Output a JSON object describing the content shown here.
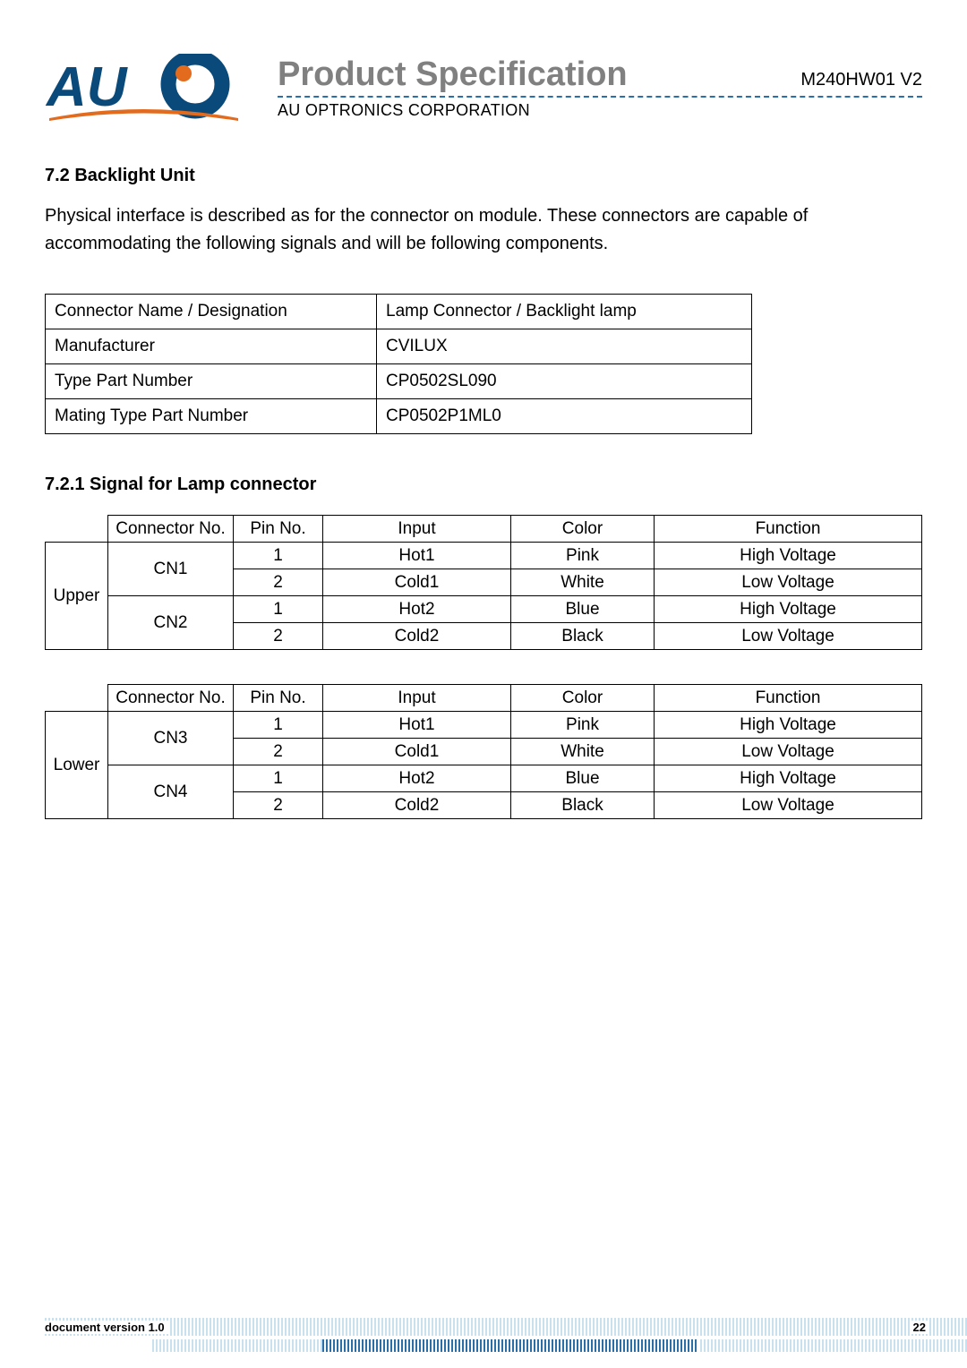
{
  "header": {
    "title": "Product Specification",
    "model": "M240HW01  V2",
    "subtitle": "AU OPTRONICS CORPORATION",
    "logo": {
      "brand_text": "AUO",
      "text_color": "#0a4a7a",
      "dot_color": "#e26b1e",
      "swoosh_color": "#e26b1e"
    }
  },
  "section": {
    "heading": "7.2 Backlight Unit",
    "body": "Physical interface is described as for the connector on module. These connectors are capable of accommodating the following signals and will be following components."
  },
  "info_table": {
    "rows": [
      [
        "Connector Name / Designation",
        "Lamp Connector / Backlight lamp"
      ],
      [
        "Manufacturer",
        "CVILUX"
      ],
      [
        "Type Part Number",
        "CP0502SL090"
      ],
      [
        "Mating Type Part Number",
        "CP0502P1ML0"
      ]
    ]
  },
  "sub_heading": "7.2.1 Signal for Lamp connector",
  "signal_tables": {
    "headers": [
      "",
      "Connector No.",
      "Pin No.",
      "Input",
      "Color",
      "Function"
    ],
    "groups": [
      {
        "position": "Upper",
        "connectors": [
          {
            "name": "CN1",
            "pins": [
              {
                "pin": "1",
                "input": "Hot1",
                "color": "Pink",
                "func": "High Voltage"
              },
              {
                "pin": "2",
                "input": "Cold1",
                "color": "White",
                "func": "Low Voltage"
              }
            ]
          },
          {
            "name": "CN2",
            "pins": [
              {
                "pin": "1",
                "input": "Hot2",
                "color": "Blue",
                "func": "High Voltage"
              },
              {
                "pin": "2",
                "input": "Cold2",
                "color": "Black",
                "func": "Low Voltage"
              }
            ]
          }
        ]
      },
      {
        "position": "Lower",
        "connectors": [
          {
            "name": "CN3",
            "pins": [
              {
                "pin": "1",
                "input": "Hot1",
                "color": "Pink",
                "func": "High Voltage"
              },
              {
                "pin": "2",
                "input": "Cold1",
                "color": "White",
                "func": "Low Voltage"
              }
            ]
          },
          {
            "name": "CN4",
            "pins": [
              {
                "pin": "1",
                "input": "Hot2",
                "color": "Blue",
                "func": "High Voltage"
              },
              {
                "pin": "2",
                "input": "Cold2",
                "color": "Black",
                "func": "Low Voltage"
              }
            ]
          }
        ]
      }
    ]
  },
  "footer": {
    "version_label": "document version 1.0",
    "page": "22"
  },
  "colors": {
    "title_gray": "#808080",
    "dashed_underline": "#2a6fa8",
    "footer_pattern_light": "#c9e0ef",
    "footer_pattern_dark": "#2a6fa8"
  }
}
